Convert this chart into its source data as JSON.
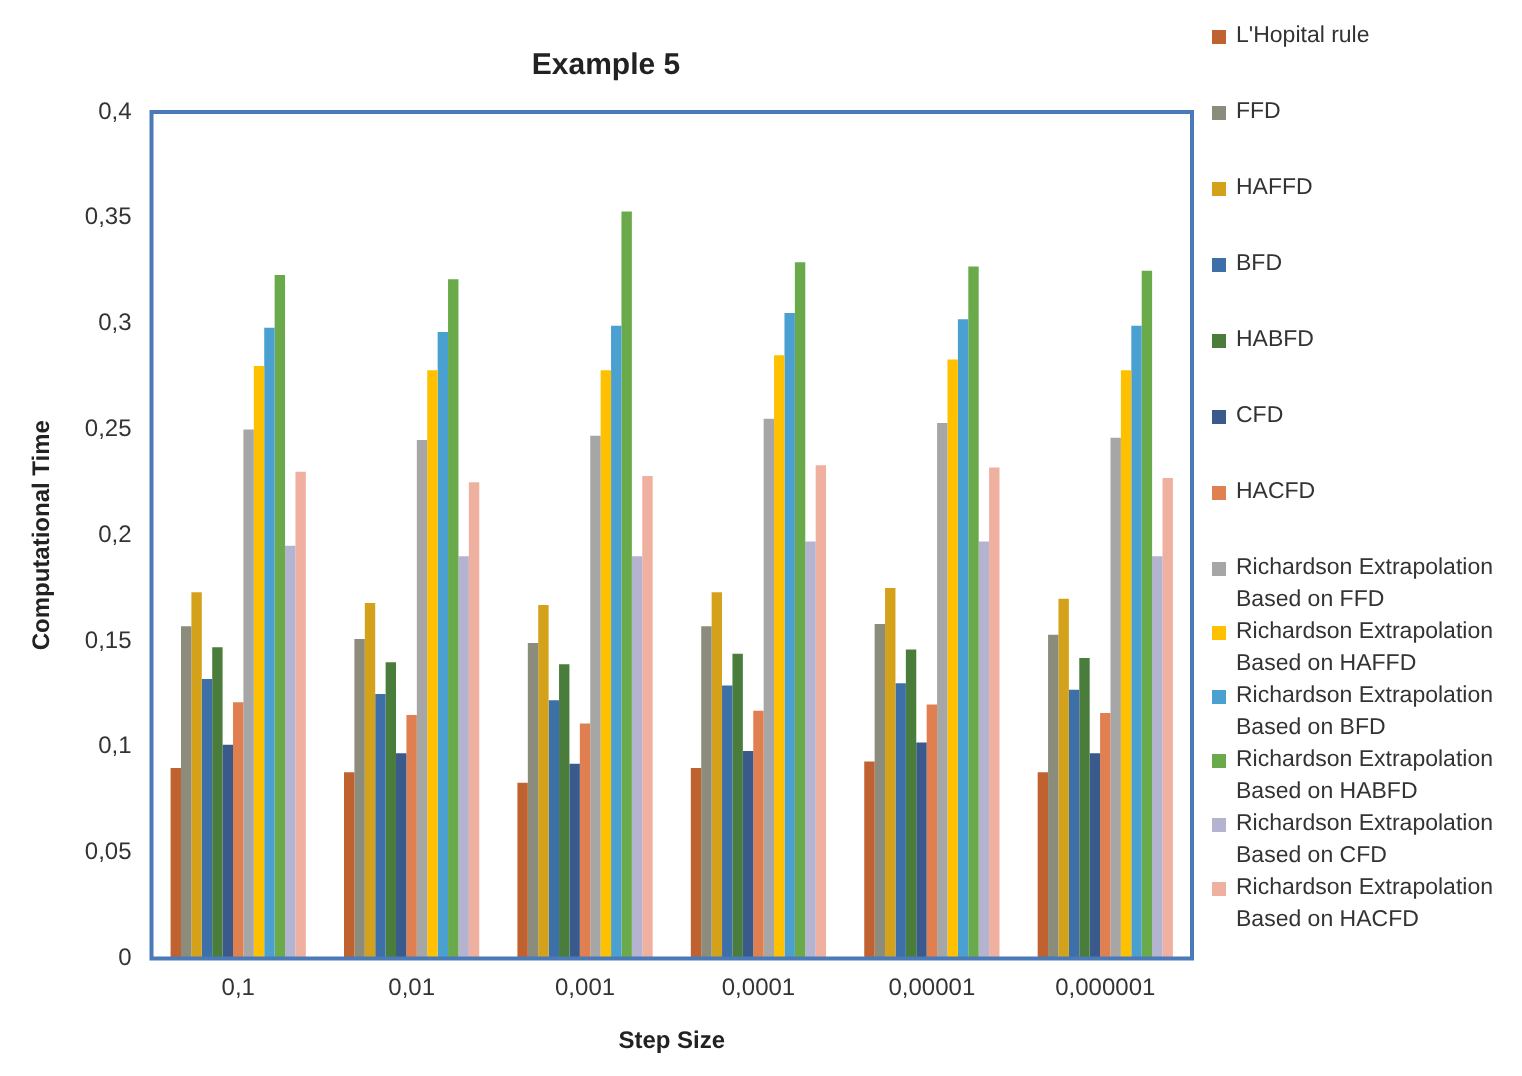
{
  "chart_data": {
    "type": "bar",
    "title": "Example 5",
    "xlabel": "Step Size",
    "ylabel": "Computational Time",
    "categories": [
      "0,1",
      "0,01",
      "0,001",
      "0,0001",
      "0,00001",
      "0,000001"
    ],
    "ylim": [
      0,
      0.4
    ],
    "yticks": [
      {
        "value": 0,
        "label": "0"
      },
      {
        "value": 0.05,
        "label": "0,05"
      },
      {
        "value": 0.1,
        "label": "0,1"
      },
      {
        "value": 0.15,
        "label": "0,15"
      },
      {
        "value": 0.2,
        "label": "0,2"
      },
      {
        "value": 0.25,
        "label": "0,25"
      },
      {
        "value": 0.3,
        "label": "0,3"
      },
      {
        "value": 0.35,
        "label": "0,35"
      },
      {
        "value": 0.4,
        "label": "0,4"
      }
    ],
    "legend": "right",
    "series": [
      {
        "name": "L'Hopital rule",
        "color": "#c0622f",
        "values": [
          0.09,
          0.088,
          0.083,
          0.09,
          0.093,
          0.088
        ]
      },
      {
        "name": "FFD",
        "color": "#8c8c7c",
        "values": [
          0.157,
          0.151,
          0.149,
          0.157,
          0.158,
          0.153
        ]
      },
      {
        "name": "HAFFD",
        "color": "#d4a21a",
        "values": [
          0.173,
          0.168,
          0.167,
          0.173,
          0.175,
          0.17
        ]
      },
      {
        "name": "BFD",
        "color": "#3d6fa8",
        "values": [
          0.132,
          0.125,
          0.122,
          0.129,
          0.13,
          0.127
        ]
      },
      {
        "name": "HABFD",
        "color": "#4a7d3c",
        "values": [
          0.147,
          0.14,
          0.139,
          0.144,
          0.146,
          0.142
        ]
      },
      {
        "name": "CFD",
        "color": "#3b5a8c",
        "values": [
          0.101,
          0.097,
          0.092,
          0.098,
          0.102,
          0.097
        ]
      },
      {
        "name": "HACFD",
        "color": "#e08050",
        "values": [
          0.121,
          0.115,
          0.111,
          0.117,
          0.12,
          0.116
        ]
      },
      {
        "name": "Richardson Extrapolation Based on FFD",
        "color": "#a6a6a6",
        "values": [
          0.25,
          0.245,
          0.247,
          0.255,
          0.253,
          0.246
        ]
      },
      {
        "name": "Richardson Extrapolation Based on HAFFD",
        "color": "#ffc000",
        "values": [
          0.28,
          0.278,
          0.278,
          0.285,
          0.283,
          0.278
        ]
      },
      {
        "name": "Richardson Extrapolation Based on BFD",
        "color": "#4aa0d0",
        "values": [
          0.298,
          0.296,
          0.299,
          0.305,
          0.302,
          0.299
        ]
      },
      {
        "name": "Richardson Extrapolation Based on HABFD",
        "color": "#6aaa4a",
        "values": [
          0.323,
          0.321,
          0.353,
          0.329,
          0.327,
          0.325
        ]
      },
      {
        "name": "Richardson Extrapolation Based on CFD",
        "color": "#b4b4d0",
        "values": [
          0.195,
          0.19,
          0.19,
          0.197,
          0.197,
          0.19
        ]
      },
      {
        "name": "Richardson Extrapolation Based on HACFD",
        "color": "#f0b0a0",
        "values": [
          0.23,
          0.225,
          0.228,
          0.233,
          0.232,
          0.227
        ]
      }
    ]
  }
}
